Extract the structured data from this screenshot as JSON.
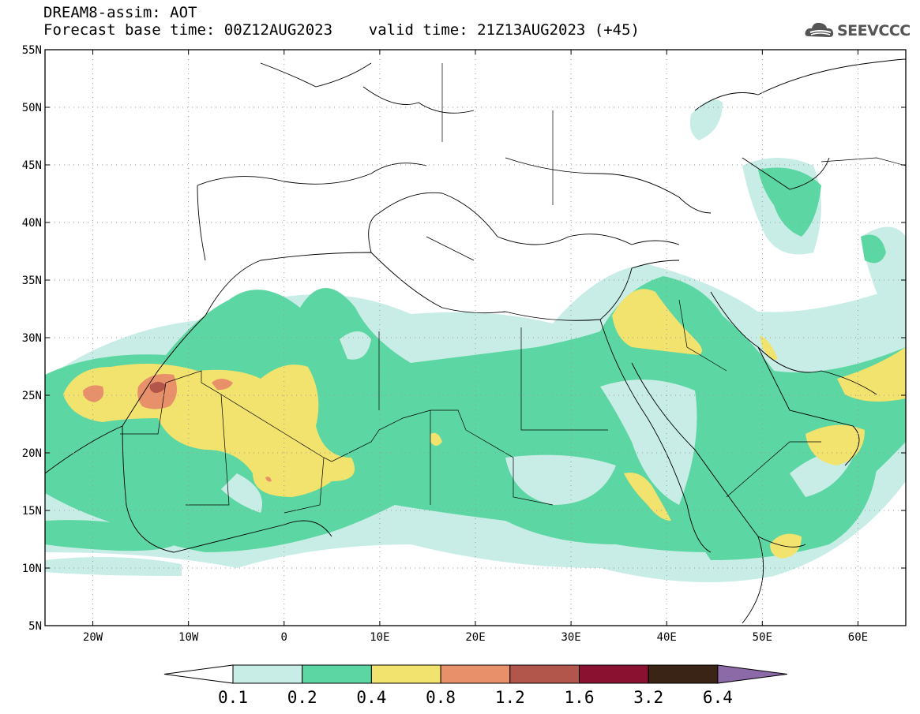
{
  "header": {
    "line1": "DREAM8-assim: AOT",
    "line2": "Forecast base time: 00Z12AUG2023    valid time: 21Z13AUG2023 (+45)"
  },
  "logo": {
    "text": "SEEVCCC",
    "icon": "cloud-icon"
  },
  "map": {
    "lon_range": [
      -25,
      65
    ],
    "lat_range": [
      5,
      55
    ],
    "lat_ticks": [
      "55N",
      "50N",
      "45N",
      "40N",
      "35N",
      "30N",
      "25N",
      "20N",
      "15N",
      "10N",
      "5N"
    ],
    "lon_ticks": [
      "20W",
      "10W",
      "0",
      "10E",
      "20E",
      "30E",
      "40E",
      "50E",
      "60E"
    ],
    "grid": true
  },
  "colorbar": {
    "labels": [
      "0.1",
      "0.2",
      "0.4",
      "0.8",
      "1.2",
      "1.6",
      "3.2",
      "6.4"
    ],
    "colors": [
      "#ffffff",
      "#c8ede6",
      "#5cd6a2",
      "#f2e36e",
      "#e8906a",
      "#b2554a",
      "#8a1230",
      "#3a2415",
      "#8c6aa8"
    ]
  }
}
